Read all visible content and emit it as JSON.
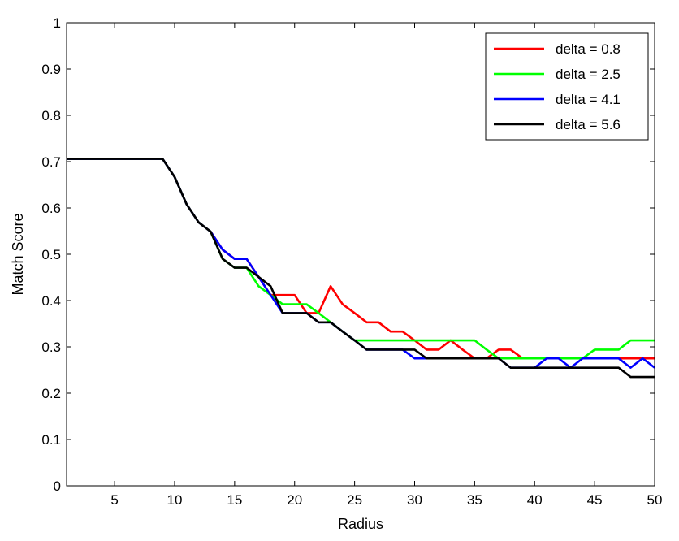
{
  "chart_data": {
    "type": "line",
    "title": "",
    "xlabel": "Radius",
    "ylabel": "Match Score",
    "xlim": [
      1,
      50
    ],
    "ylim": [
      0,
      1
    ],
    "xticks": [
      5,
      10,
      15,
      20,
      25,
      30,
      35,
      40,
      45,
      50
    ],
    "yticks": [
      0,
      0.1,
      0.2,
      0.3,
      0.4,
      0.5,
      0.6,
      0.7,
      0.8,
      0.9,
      1
    ],
    "ytick_labels": [
      "0",
      "0.1",
      "0.2",
      "0.3",
      "0.4",
      "0.5",
      "0.6",
      "0.7",
      "0.8",
      "0.9",
      "1"
    ],
    "grid": false,
    "legend_position": "top-right",
    "x": [
      1,
      2,
      3,
      4,
      5,
      6,
      7,
      8,
      9,
      10,
      11,
      12,
      13,
      14,
      15,
      16,
      17,
      18,
      19,
      20,
      21,
      22,
      23,
      24,
      25,
      26,
      27,
      28,
      29,
      30,
      31,
      32,
      33,
      34,
      35,
      36,
      37,
      38,
      39,
      40,
      41,
      42,
      43,
      44,
      45,
      46,
      47,
      48,
      49,
      50
    ],
    "series": [
      {
        "name": "delta = 0.8",
        "color": "#ff0000",
        "values": [
          0.706,
          0.706,
          0.706,
          0.706,
          0.706,
          0.706,
          0.706,
          0.706,
          0.706,
          0.667,
          0.608,
          0.569,
          0.549,
          0.51,
          0.49,
          0.49,
          0.451,
          0.412,
          0.412,
          0.412,
          0.373,
          0.373,
          0.431,
          0.392,
          0.373,
          0.353,
          0.353,
          0.333,
          0.333,
          0.314,
          0.294,
          0.294,
          0.314,
          0.294,
          0.275,
          0.275,
          0.294,
          0.294,
          0.275,
          0.275,
          0.275,
          0.275,
          0.275,
          0.275,
          0.275,
          0.275,
          0.275,
          0.275,
          0.275,
          0.275
        ]
      },
      {
        "name": "delta = 2.5",
        "color": "#00ff00",
        "values": [
          0.706,
          0.706,
          0.706,
          0.706,
          0.706,
          0.706,
          0.706,
          0.706,
          0.706,
          0.667,
          0.608,
          0.569,
          0.549,
          0.49,
          0.471,
          0.471,
          0.431,
          0.412,
          0.392,
          0.392,
          0.392,
          0.373,
          0.353,
          0.333,
          0.314,
          0.314,
          0.314,
          0.314,
          0.314,
          0.314,
          0.314,
          0.314,
          0.314,
          0.314,
          0.314,
          0.294,
          0.275,
          0.275,
          0.275,
          0.275,
          0.275,
          0.275,
          0.275,
          0.275,
          0.294,
          0.294,
          0.294,
          0.314,
          0.314,
          0.314
        ]
      },
      {
        "name": "delta = 4.1",
        "color": "#0000ff",
        "values": [
          0.706,
          0.706,
          0.706,
          0.706,
          0.706,
          0.706,
          0.706,
          0.706,
          0.706,
          0.667,
          0.608,
          0.569,
          0.549,
          0.51,
          0.49,
          0.49,
          0.451,
          0.412,
          0.373,
          0.373,
          0.373,
          0.353,
          0.353,
          0.333,
          0.314,
          0.294,
          0.294,
          0.294,
          0.294,
          0.275,
          0.275,
          0.275,
          0.275,
          0.275,
          0.275,
          0.275,
          0.275,
          0.255,
          0.255,
          0.255,
          0.275,
          0.275,
          0.255,
          0.275,
          0.275,
          0.275,
          0.275,
          0.255,
          0.275,
          0.255
        ]
      },
      {
        "name": "delta = 5.6",
        "color": "#000000",
        "values": [
          0.706,
          0.706,
          0.706,
          0.706,
          0.706,
          0.706,
          0.706,
          0.706,
          0.706,
          0.667,
          0.608,
          0.569,
          0.549,
          0.49,
          0.471,
          0.471,
          0.451,
          0.431,
          0.373,
          0.373,
          0.373,
          0.353,
          0.353,
          0.333,
          0.314,
          0.294,
          0.294,
          0.294,
          0.294,
          0.294,
          0.275,
          0.275,
          0.275,
          0.275,
          0.275,
          0.275,
          0.275,
          0.255,
          0.255,
          0.255,
          0.255,
          0.255,
          0.255,
          0.255,
          0.255,
          0.255,
          0.255,
          0.235,
          0.235,
          0.235
        ]
      }
    ]
  }
}
